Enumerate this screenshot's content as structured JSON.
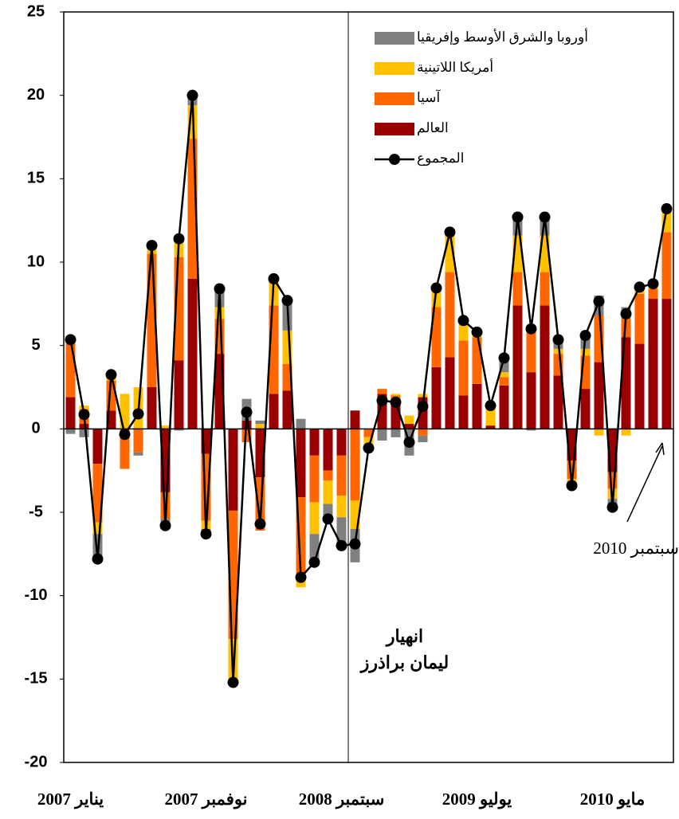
{
  "chart_data": {
    "type": "bar",
    "categories": [
      "يناير 2007",
      null,
      null,
      null,
      null,
      null,
      null,
      null,
      null,
      null,
      "نوفمبر 2007",
      null,
      null,
      null,
      null,
      null,
      null,
      null,
      null,
      null,
      "سبتمبر 2008",
      null,
      null,
      null,
      null,
      null,
      null,
      null,
      null,
      null,
      "يوليو 2009",
      null,
      null,
      null,
      null,
      null,
      null,
      null,
      null,
      null,
      "مايو 2010",
      null,
      null,
      null,
      null
    ],
    "series": [
      {
        "name": "العالم",
        "color": "#990000",
        "values": [
          1.9,
          0.3,
          -2.1,
          1.1,
          0,
          0,
          2.5,
          -3.8,
          4.1,
          9.0,
          -1.5,
          4.5,
          -4.9,
          0.5,
          -2.9,
          2.1,
          2.3,
          -4.1,
          -1.6,
          -2.5,
          -1.6,
          1.1,
          0,
          2.1,
          1.6,
          0.3,
          1.9,
          3.7,
          4.3,
          2.0,
          2.7,
          0.2,
          2.6,
          7.4,
          3.4,
          7.4,
          3.2,
          -1.9,
          2.4,
          4.0,
          -2.6,
          5.5,
          5.1,
          7.8,
          7.8
        ]
      },
      {
        "name": "آسيا",
        "color": "#ff6600",
        "values": [
          3.2,
          0.9,
          -3.5,
          1.8,
          -2.4,
          -1.4,
          8.0,
          -1.6,
          6.2,
          8.4,
          -4.0,
          2.1,
          -7.7,
          -0.8,
          -3.2,
          5.3,
          1.6,
          -5.0,
          -2.8,
          -0.6,
          -2.4,
          -4.3,
          -0.5,
          0.3,
          0.4,
          0,
          -0.4,
          3.6,
          5.1,
          3.3,
          2.8,
          0,
          0.5,
          2.0,
          2.4,
          2.0,
          1.3,
          -1.1,
          2.0,
          2.8,
          -1.0,
          1.1,
          3.0,
          0.6,
          4.0
        ]
      },
      {
        "name": "أمريكا اللاتينية",
        "color": "#ffc000",
        "values": [
          0.3,
          0.2,
          -0.7,
          0.4,
          2.1,
          2.5,
          0.5,
          0.2,
          1.0,
          2.0,
          -0.5,
          0.7,
          -2.6,
          0,
          0.3,
          1.6,
          2.0,
          -0.4,
          -1.9,
          -1.4,
          -1.3,
          -1.7,
          -0.4,
          0,
          0.1,
          0.5,
          0.2,
          1.2,
          2.2,
          1.2,
          0.3,
          1.2,
          0.3,
          2.2,
          0.2,
          2.2,
          0.3,
          -0.3,
          0.4,
          -0.4,
          -0.6,
          -0.4,
          0.4,
          0.3,
          1.4
        ]
      },
      {
        "name": "أوروبا والشرق الأوسط وإفريقيا",
        "color": "#808080",
        "values": [
          -0.3,
          -0.5,
          -1.5,
          0,
          0,
          -0.2,
          0,
          -0.4,
          -0.1,
          0.6,
          -0.3,
          1.1,
          0,
          1.3,
          0.2,
          0,
          1.8,
          0.6,
          -1.7,
          -0.9,
          -1.7,
          -2.0,
          -0.25,
          -0.7,
          -0.5,
          -1.6,
          -0.4,
          0,
          0.2,
          0,
          0,
          0,
          0.8,
          1.1,
          -0.1,
          1.1,
          0.6,
          -0.1,
          0.8,
          1.2,
          -0.5,
          0.7,
          0,
          0,
          0
        ]
      },
      {
        "name": "المجموع",
        "type": "line",
        "color": "#000000",
        "values": [
          5.35,
          0.86,
          -7.8,
          3.25,
          -0.33,
          0.9,
          11.0,
          -5.8,
          11.4,
          20.0,
          -6.3,
          8.4,
          -15.2,
          1.0,
          -5.7,
          9.0,
          7.7,
          -8.9,
          -8.0,
          -5.4,
          -7.0,
          -6.9,
          -1.15,
          1.7,
          1.6,
          -0.8,
          1.35,
          8.45,
          11.8,
          6.5,
          5.8,
          1.4,
          4.25,
          12.7,
          6.0,
          12.7,
          5.35,
          -3.4,
          5.6,
          7.65,
          -4.7,
          6.9,
          8.5,
          8.7,
          13.2
        ]
      }
    ],
    "ylim": [
      -20,
      25
    ],
    "yticks": [
      -20,
      -15,
      -10,
      -5,
      0,
      5,
      10,
      15,
      20,
      25
    ],
    "legend": "upper right",
    "annotations": [
      "انهيار",
      "ليمان براذرز",
      "سبتمبر 2010"
    ]
  }
}
